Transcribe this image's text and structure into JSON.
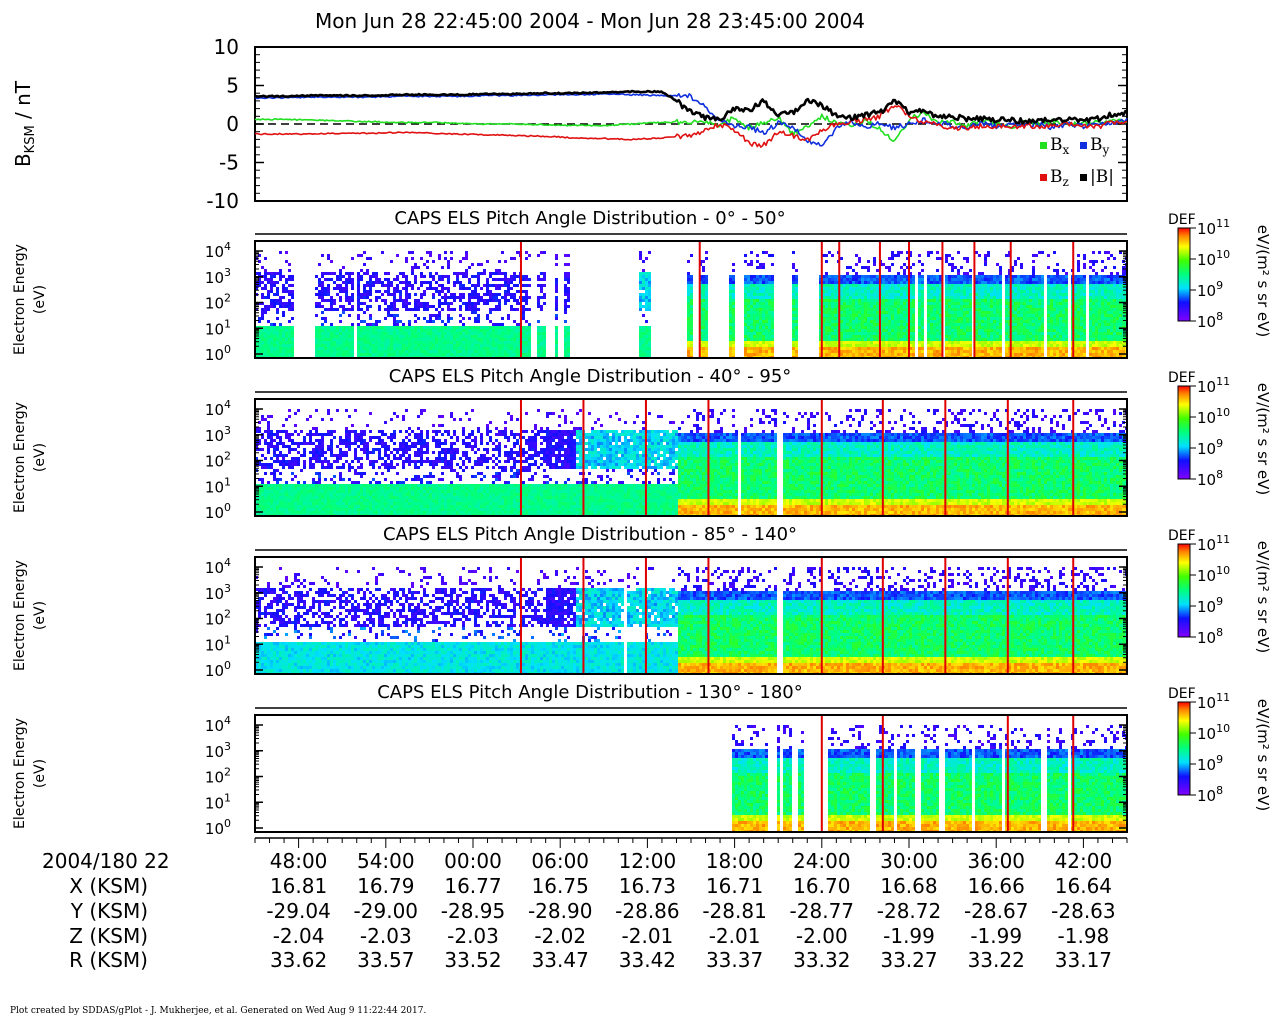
{
  "title": "Mon Jun 28 22:45:00 2004 - Mon Jun 28 23:45:00 2004",
  "footer": "Plot created by SDDAS/gPlot - J. Mukherjee, et al.  Generated on Wed Aug 9 11:22:44 2017.",
  "colors": {
    "bx": "#20e020",
    "by": "#1030e0",
    "bz": "#e01010",
    "bmag": "#000000"
  },
  "chart_data": [
    {
      "type": "line",
      "ylabel_main": "B",
      "ylabel_sub": "KSM",
      "ylabel_unit": " / nT",
      "ylim": [
        -10,
        10
      ],
      "yticks": [
        10,
        5,
        0,
        -5,
        -10
      ],
      "xlim_min": [
        0,
        60
      ],
      "zero_line": "dashed",
      "legend_placement": "bottom-right",
      "legend": [
        {
          "key": "bx",
          "main": "B",
          "sub": "x"
        },
        {
          "key": "by",
          "main": "B",
          "sub": "y"
        },
        {
          "key": "bz",
          "main": "B",
          "sub": "z"
        },
        {
          "key": "bmag",
          "main": "|B|",
          "sub": ""
        }
      ],
      "series": [
        {
          "key": "bx",
          "x": [
            0,
            2,
            4,
            6,
            8,
            10,
            12,
            14,
            16,
            18,
            20,
            22,
            24,
            26,
            28,
            30,
            32,
            33,
            34,
            35,
            36,
            37,
            38,
            39,
            40,
            41,
            42,
            43,
            44,
            45,
            46,
            47,
            48,
            49,
            50,
            51,
            52,
            53,
            54,
            55,
            56,
            57,
            58,
            59,
            60
          ],
          "y": [
            0.6,
            0.6,
            0.5,
            0.4,
            0.3,
            0.2,
            0.2,
            0.1,
            0.0,
            0.0,
            -0.1,
            -0.2,
            -0.2,
            0.0,
            0.2,
            0.3,
            -0.2,
            0.8,
            -0.5,
            0.2,
            0.8,
            -1.2,
            -0.3,
            1.0,
            0.2,
            0.0,
            0.3,
            -0.5,
            -2.5,
            0.5,
            1.5,
            0.2,
            0.2,
            -0.3,
            0.5,
            0.2,
            -0.3,
            0.3,
            0.0,
            0.4,
            -0.2,
            0.2,
            0.2,
            0.3,
            0.5
          ]
        },
        {
          "key": "by",
          "x": [
            0,
            2,
            4,
            6,
            8,
            10,
            12,
            14,
            16,
            18,
            20,
            22,
            24,
            26,
            28,
            30,
            32,
            33,
            34,
            35,
            36,
            37,
            38,
            39,
            40,
            41,
            42,
            43,
            44,
            45,
            46,
            47,
            48,
            49,
            50,
            51,
            52,
            53,
            54,
            55,
            56,
            57,
            58,
            59,
            60
          ],
          "y": [
            3.4,
            3.4,
            3.5,
            3.5,
            3.5,
            3.6,
            3.6,
            3.6,
            3.7,
            3.7,
            3.8,
            3.8,
            3.9,
            3.8,
            3.7,
            3.6,
            0.5,
            -0.3,
            -0.4,
            -1.2,
            0.2,
            -0.5,
            -2.0,
            -3.0,
            -0.5,
            0.2,
            -0.3,
            0.0,
            -0.5,
            0.0,
            0.5,
            0.2,
            -0.2,
            -0.4,
            0.0,
            -0.3,
            -0.2,
            -0.1,
            0.0,
            -0.5,
            0.0,
            -0.3,
            -0.2,
            0.2,
            0.6
          ]
        },
        {
          "key": "bz",
          "x": [
            0,
            2,
            4,
            6,
            8,
            10,
            12,
            14,
            16,
            18,
            20,
            22,
            24,
            26,
            28,
            30,
            32,
            33,
            34,
            35,
            36,
            37,
            38,
            39,
            40,
            41,
            42,
            43,
            44,
            45,
            46,
            47,
            48,
            49,
            50,
            51,
            52,
            53,
            54,
            55,
            56,
            57,
            58,
            59,
            60
          ],
          "y": [
            -1.3,
            -1.3,
            -1.3,
            -1.2,
            -1.2,
            -1.1,
            -1.2,
            -1.3,
            -1.4,
            -1.5,
            -1.6,
            -1.8,
            -1.9,
            -2.0,
            -1.8,
            -1.5,
            0.0,
            -0.8,
            -2.5,
            -2.8,
            -1.0,
            -1.5,
            -2.0,
            -1.0,
            0.0,
            0.3,
            0.5,
            1.0,
            2.5,
            1.0,
            0.3,
            -0.2,
            -0.5,
            -0.6,
            -0.3,
            -0.2,
            -0.5,
            -0.2,
            -0.3,
            -0.2,
            0.0,
            -0.3,
            -0.4,
            0.3,
            0.4
          ]
        },
        {
          "key": "bmag",
          "x": [
            0,
            2,
            4,
            6,
            8,
            10,
            12,
            14,
            16,
            18,
            20,
            22,
            24,
            26,
            28,
            29,
            30,
            31,
            32,
            33,
            34,
            35,
            36,
            37,
            38,
            39,
            40,
            41,
            42,
            43,
            44,
            45,
            46,
            47,
            48,
            49,
            50,
            51,
            52,
            53,
            54,
            55,
            56,
            57,
            58,
            59,
            60
          ],
          "y": [
            3.6,
            3.6,
            3.7,
            3.7,
            3.7,
            3.8,
            3.8,
            3.8,
            3.9,
            3.9,
            4.0,
            4.0,
            4.1,
            4.2,
            4.2,
            3.0,
            1.5,
            0.8,
            0.5,
            2.0,
            1.8,
            3.0,
            1.2,
            1.5,
            3.0,
            2.5,
            1.0,
            0.8,
            1.2,
            1.5,
            3.0,
            1.5,
            1.8,
            0.8,
            1.0,
            0.6,
            0.8,
            0.5,
            0.6,
            0.3,
            0.4,
            0.6,
            0.5,
            0.5,
            0.7,
            1.2,
            1.5
          ]
        }
      ]
    },
    {
      "type": "heatmap",
      "title": "CAPS ELS Pitch Angle Distribution - 0° - 50°",
      "ylabel": [
        "Electron Energy",
        "(eV)"
      ],
      "yticks": [
        "0",
        "1",
        "2",
        "3",
        "4"
      ],
      "colorbar": {
        "label": "DEF",
        "unit": "eV/(m² s sr eV)",
        "ticks": [
          "8",
          "9",
          "10",
          "11"
        ],
        "range_log10": [
          8,
          11
        ]
      },
      "gaps": [
        [
          2.5,
          4.0
        ],
        [
          6.8,
          7.0
        ],
        [
          18.8,
          19.2
        ],
        [
          20.0,
          20.5
        ],
        [
          20.8,
          21.2
        ],
        [
          21.6,
          24.2
        ],
        [
          24.3,
          26.3
        ],
        [
          27.2,
          29.7
        ],
        [
          30.0,
          30.4
        ],
        [
          31.0,
          32.0
        ],
        [
          32.2,
          32.5
        ],
        [
          32.9,
          33.6
        ],
        [
          35.7,
          36.9
        ],
        [
          37.2,
          38.8
        ],
        [
          45.4,
          45.6
        ],
        [
          46.0,
          46.2
        ],
        [
          47.1,
          47.4
        ],
        [
          49.2,
          49.5
        ],
        [
          51.3,
          51.6
        ],
        [
          54.2,
          54.4
        ],
        [
          55.8,
          56.1
        ],
        [
          57.0,
          57.3
        ]
      ],
      "red_lines": [
        18.3,
        30.6,
        39.0,
        40.2,
        43.0,
        45.0,
        47.3,
        49.5,
        52.0,
        56.3
      ]
    },
    {
      "type": "heatmap",
      "title": "CAPS ELS Pitch Angle Distribution - 40° - 95°",
      "ylabel": [
        "Electron Energy",
        "(eV)"
      ],
      "yticks": [
        "0",
        "1",
        "2",
        "3",
        "4"
      ],
      "colorbar": {
        "label": "DEF",
        "unit": "eV/(m² s sr eV)",
        "ticks": [
          "8",
          "9",
          "10",
          "11"
        ],
        "range_log10": [
          8,
          11
        ]
      },
      "gaps": [
        [
          33.2,
          33.4
        ],
        [
          35.8,
          36.3
        ]
      ],
      "red_lines": [
        18.3,
        22.6,
        26.9,
        31.2,
        39.0,
        43.2,
        47.5,
        51.8,
        56.3
      ]
    },
    {
      "type": "heatmap",
      "title": "CAPS ELS Pitch Angle Distribution - 85° - 140°",
      "ylabel": [
        "Electron Energy",
        "(eV)"
      ],
      "yticks": [
        "0",
        "1",
        "2",
        "3",
        "4"
      ],
      "colorbar": {
        "label": "DEF",
        "unit": "eV/(m² s sr eV)",
        "ticks": [
          "8",
          "9",
          "10",
          "11"
        ],
        "range_log10": [
          8,
          11
        ]
      },
      "gaps": [
        [
          25.3,
          25.5
        ],
        [
          35.8,
          36.3
        ]
      ],
      "red_lines": [
        18.3,
        22.6,
        26.9,
        31.2,
        39.0,
        43.2,
        47.5,
        51.8,
        56.3
      ]
    },
    {
      "type": "heatmap",
      "title": "CAPS ELS Pitch Angle Distribution - 130° - 180°",
      "ylabel": [
        "Electron Energy",
        "(eV)"
      ],
      "yticks": [
        "0",
        "1",
        "2",
        "3",
        "4"
      ],
      "colorbar": {
        "label": "DEF",
        "unit": "eV/(m² s sr eV)",
        "ticks": [
          "8",
          "9",
          "10",
          "11"
        ],
        "range_log10": [
          8,
          11
        ]
      },
      "data_start": 32.8,
      "gaps": [
        [
          0,
          32.8
        ],
        [
          35.2,
          35.8
        ],
        [
          36.0,
          36.3
        ],
        [
          36.8,
          37.2
        ],
        [
          37.7,
          39.4
        ],
        [
          42.3,
          42.6
        ],
        [
          43.8,
          44.0
        ],
        [
          45.4,
          45.7
        ],
        [
          47.0,
          47.3
        ],
        [
          49.2,
          49.5
        ],
        [
          51.2,
          51.5
        ],
        [
          54.0,
          54.3
        ],
        [
          55.8,
          56.0
        ]
      ],
      "red_lines": [
        39.0,
        43.2,
        51.8,
        56.3
      ]
    }
  ],
  "x_axis": {
    "start_label": "2004/180 22",
    "tick_minutes": [
      3,
      9,
      15,
      21,
      27,
      33,
      39,
      45,
      51,
      57
    ],
    "rows": [
      {
        "label": "",
        "values": [
          "48:00",
          "54:00",
          "00:00",
          "06:00",
          "12:00",
          "18:00",
          "24:00",
          "30:00",
          "36:00",
          "42:00"
        ]
      },
      {
        "label": "X (KSM)",
        "values": [
          "16.81",
          "16.79",
          "16.77",
          "16.75",
          "16.73",
          "16.71",
          "16.70",
          "16.68",
          "16.66",
          "16.64"
        ]
      },
      {
        "label": "Y (KSM)",
        "values": [
          "-29.04",
          "-29.00",
          "-28.95",
          "-28.90",
          "-28.86",
          "-28.81",
          "-28.77",
          "-28.72",
          "-28.67",
          "-28.63"
        ]
      },
      {
        "label": "Z (KSM)",
        "values": [
          "-2.04",
          "-2.03",
          "-2.03",
          "-2.02",
          "-2.01",
          "-2.01",
          "-2.00",
          "-1.99",
          "-1.99",
          "-1.98"
        ]
      },
      {
        "label": "R (KSM)",
        "values": [
          "33.62",
          "33.57",
          "33.52",
          "33.47",
          "33.42",
          "33.37",
          "33.32",
          "33.27",
          "33.22",
          "33.17"
        ]
      }
    ]
  }
}
